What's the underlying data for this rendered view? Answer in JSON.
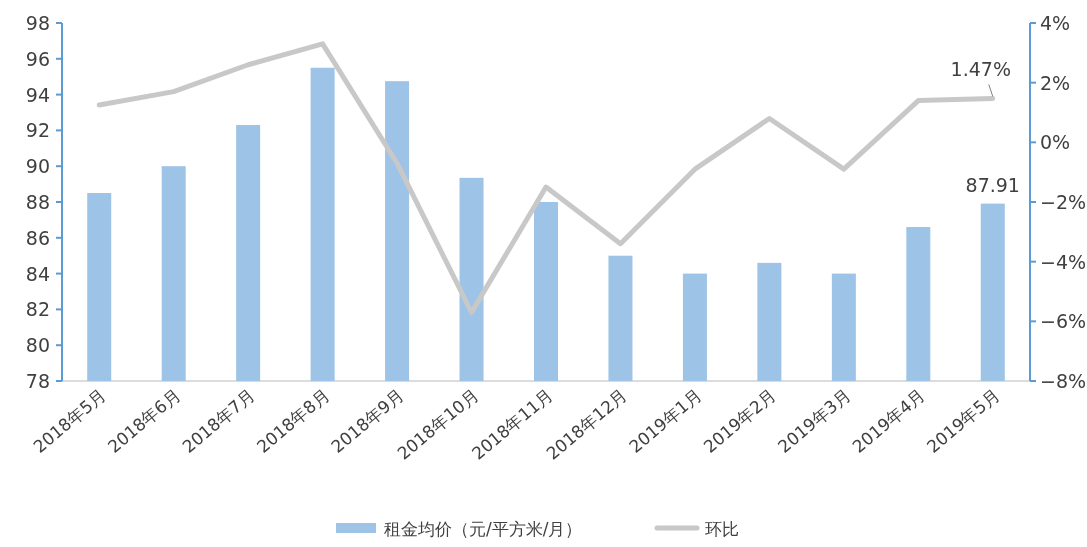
{
  "chart_data": {
    "type": "bar",
    "categories": [
      "2018年5月",
      "2018年6月",
      "2018年7月",
      "2018年8月",
      "2018年9月",
      "2018年10月",
      "2018年11月",
      "2018年12月",
      "2019年1月",
      "2019年2月",
      "2019年3月",
      "2019年4月",
      "2019年5月"
    ],
    "series": [
      {
        "name": "租金均价（元/平方米/月）",
        "color": "#9dc3e6",
        "values": [
          88.5,
          90.0,
          92.3,
          95.5,
          94.75,
          89.35,
          88.0,
          85.0,
          84.0,
          84.6,
          84.0,
          86.6,
          87.91
        ],
        "value_labels": [
          null,
          null,
          null,
          null,
          null,
          null,
          null,
          null,
          null,
          null,
          null,
          null,
          "87.91"
        ]
      },
      {
        "name": "环比",
        "type": "line",
        "axis": "y2",
        "color": "#c8c8c8",
        "values": [
          1.25,
          1.7,
          2.6,
          3.3,
          -0.7,
          -5.7,
          -1.5,
          -3.4,
          -0.9,
          0.8,
          -0.9,
          1.4,
          1.47
        ],
        "value_labels": [
          null,
          null,
          null,
          null,
          null,
          null,
          null,
          null,
          null,
          null,
          null,
          null,
          "1.47%"
        ]
      }
    ],
    "ylim": [
      78,
      98
    ],
    "yticks": [
      78,
      80,
      82,
      84,
      86,
      88,
      90,
      92,
      94,
      96,
      98
    ],
    "y2lim": [
      -8,
      4
    ],
    "y2ticks": [
      {
        "value": -8,
        "label": "−8%"
      },
      {
        "value": -6,
        "label": "−6%"
      },
      {
        "value": -4,
        "label": "−4%"
      },
      {
        "value": -2,
        "label": "−2%"
      },
      {
        "value": 0,
        "label": "0%"
      },
      {
        "value": 2,
        "label": "2%"
      },
      {
        "value": 4,
        "label": "4%"
      }
    ],
    "grid": false,
    "legend": "bottom"
  }
}
